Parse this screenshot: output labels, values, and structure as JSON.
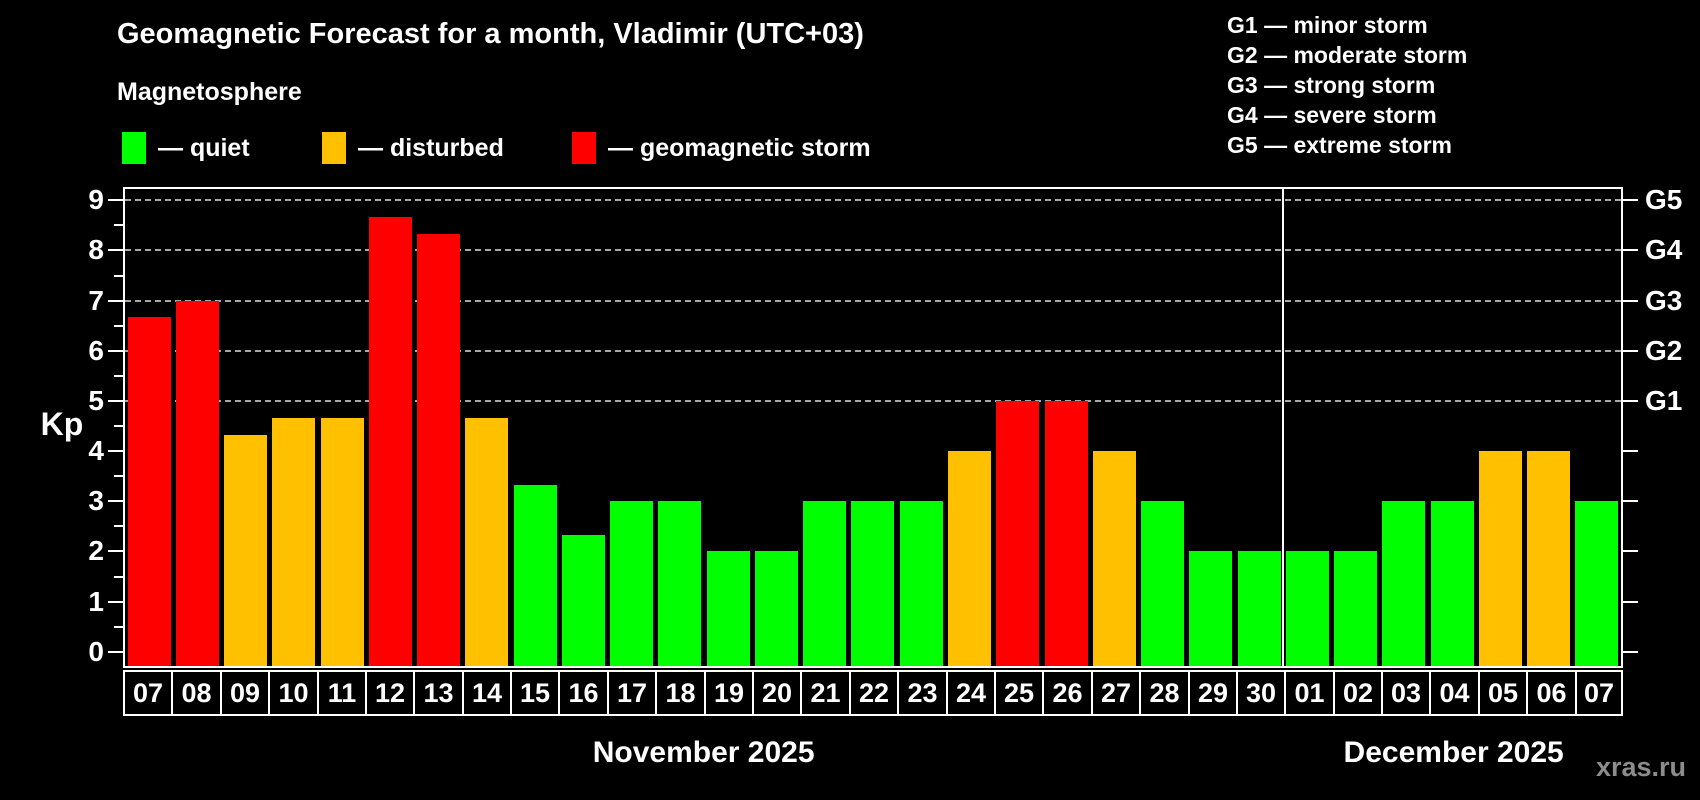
{
  "title": "Geomagnetic Forecast for a month, Vladimir (UTC+03)",
  "subtitle": "Magnetosphere",
  "legend": {
    "items": [
      {
        "key": "quiet",
        "label": "— quiet",
        "color": "#00ff00"
      },
      {
        "key": "disturbed",
        "label": "— disturbed",
        "color": "#ffc000"
      },
      {
        "key": "storm",
        "label": "— geomagnetic storm",
        "color": "#ff0000"
      }
    ]
  },
  "g_legend": [
    "G1 — minor storm",
    "G2 — moderate storm",
    "G3 — strong storm",
    "G4 — severe storm",
    "G5 — extreme storm"
  ],
  "watermark": "xras.ru",
  "colors": {
    "background": "#000000",
    "axis": "#ffffff",
    "grid": "#a8a8a8",
    "watermark": "#8c8c8c",
    "quiet": "#00ff00",
    "disturbed": "#ffc000",
    "storm": "#ff0000"
  },
  "chart_data": {
    "type": "bar",
    "title": "Geomagnetic Forecast for a month, Vladimir (UTC+03)",
    "ylabel": "Kp",
    "ylim": [
      0,
      9
    ],
    "y_ticks": [
      0,
      1,
      2,
      3,
      4,
      5,
      6,
      7,
      8,
      9
    ],
    "grid_levels": [
      5,
      6,
      7,
      8,
      9
    ],
    "grid_style": "dashed",
    "right_axis": [
      {
        "level": 5,
        "label": "G1"
      },
      {
        "level": 6,
        "label": "G2"
      },
      {
        "level": 7,
        "label": "G3"
      },
      {
        "level": 8,
        "label": "G4"
      },
      {
        "level": 9,
        "label": "G5"
      }
    ],
    "months": [
      {
        "label": "November 2025",
        "days": [
          {
            "day": "07",
            "kp": 6.67,
            "status": "storm"
          },
          {
            "day": "08",
            "kp": 7.0,
            "status": "storm"
          },
          {
            "day": "09",
            "kp": 4.33,
            "status": "disturbed"
          },
          {
            "day": "10",
            "kp": 4.67,
            "status": "disturbed"
          },
          {
            "day": "11",
            "kp": 4.67,
            "status": "disturbed"
          },
          {
            "day": "12",
            "kp": 8.67,
            "status": "storm"
          },
          {
            "day": "13",
            "kp": 8.33,
            "status": "storm"
          },
          {
            "day": "14",
            "kp": 4.67,
            "status": "disturbed"
          },
          {
            "day": "15",
            "kp": 3.33,
            "status": "quiet"
          },
          {
            "day": "16",
            "kp": 2.33,
            "status": "quiet"
          },
          {
            "day": "17",
            "kp": 3.0,
            "status": "quiet"
          },
          {
            "day": "18",
            "kp": 3.0,
            "status": "quiet"
          },
          {
            "day": "19",
            "kp": 2.0,
            "status": "quiet"
          },
          {
            "day": "20",
            "kp": 2.0,
            "status": "quiet"
          },
          {
            "day": "21",
            "kp": 3.0,
            "status": "quiet"
          },
          {
            "day": "22",
            "kp": 3.0,
            "status": "quiet"
          },
          {
            "day": "23",
            "kp": 3.0,
            "status": "quiet"
          },
          {
            "day": "24",
            "kp": 4.0,
            "status": "disturbed"
          },
          {
            "day": "25",
            "kp": 5.0,
            "status": "storm"
          },
          {
            "day": "26",
            "kp": 5.0,
            "status": "storm"
          },
          {
            "day": "27",
            "kp": 4.0,
            "status": "disturbed"
          },
          {
            "day": "28",
            "kp": 3.0,
            "status": "quiet"
          },
          {
            "day": "29",
            "kp": 2.0,
            "status": "quiet"
          },
          {
            "day": "30",
            "kp": 2.0,
            "status": "quiet"
          }
        ]
      },
      {
        "label": "December 2025",
        "days": [
          {
            "day": "01",
            "kp": 2.0,
            "status": "quiet"
          },
          {
            "day": "02",
            "kp": 2.0,
            "status": "quiet"
          },
          {
            "day": "03",
            "kp": 3.0,
            "status": "quiet"
          },
          {
            "day": "04",
            "kp": 3.0,
            "status": "quiet"
          },
          {
            "day": "05",
            "kp": 4.0,
            "status": "disturbed"
          },
          {
            "day": "06",
            "kp": 4.0,
            "status": "disturbed"
          },
          {
            "day": "07",
            "kp": 3.0,
            "status": "quiet"
          }
        ]
      }
    ]
  }
}
